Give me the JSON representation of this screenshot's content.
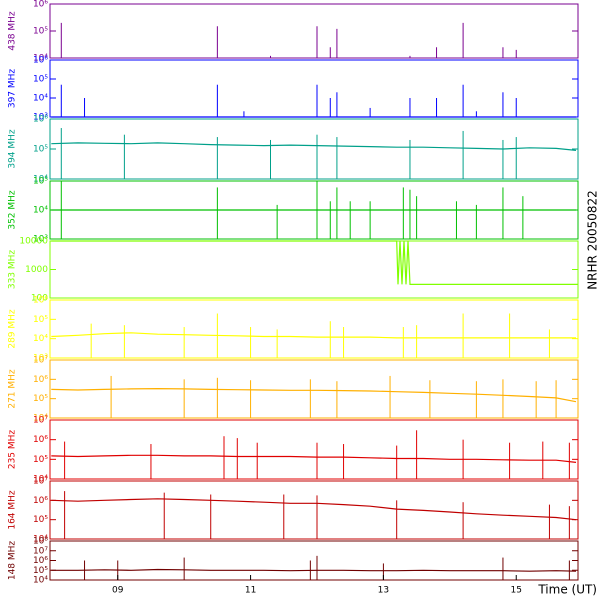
{
  "station_label": "NRHR 20050822",
  "chart_data": [
    {
      "type": "line",
      "label": "438 MHz",
      "color": "#7a0090",
      "log": true,
      "xlim": [
        7.98,
        15.93
      ],
      "ylim": [
        10000,
        1000000
      ],
      "yticks": [
        {
          "value": 10000,
          "label": "10⁴"
        },
        {
          "value": 100000,
          "label": "10⁵"
        },
        {
          "value": 1000000,
          "label": "10⁶"
        }
      ],
      "spike_x": [
        8.15,
        10.5,
        11.3,
        12.0,
        12.2,
        12.3,
        13.4,
        13.8,
        14.2,
        14.8,
        15.0
      ],
      "spike_values": [
        200000,
        150000,
        12000,
        150000,
        25000,
        120000,
        12000,
        25000,
        200000,
        25000,
        20000
      ]
    },
    {
      "type": "line",
      "label": "397 MHz",
      "color": "#0000ff",
      "log": true,
      "xlim": [
        7.98,
        15.93
      ],
      "ylim": [
        1000,
        1000000
      ],
      "yticks": [
        {
          "value": 1000,
          "label": "10³"
        },
        {
          "value": 10000,
          "label": "10⁴"
        },
        {
          "value": 100000,
          "label": "10⁵"
        },
        {
          "value": 1000000,
          "label": "10⁶"
        }
      ],
      "x": [
        8.0,
        15.9
      ],
      "values": [
        1000,
        1000
      ],
      "spike_x": [
        8.15,
        8.5,
        10.5,
        10.9,
        12.0,
        12.2,
        12.3,
        12.8,
        13.4,
        13.8,
        14.2,
        14.4,
        14.8,
        15.0
      ],
      "spike_values": [
        50000,
        10000,
        50000,
        2000,
        50000,
        10000,
        20000,
        3000,
        10000,
        10000,
        50000,
        2000,
        20000,
        10000
      ]
    },
    {
      "type": "line",
      "label": "394 MHz",
      "color": "#00a08a",
      "log": true,
      "xlim": [
        7.98,
        15.93
      ],
      "ylim": [
        10000,
        1000000
      ],
      "yticks": [
        {
          "value": 10000,
          "label": "10⁴"
        },
        {
          "value": 100000,
          "label": "10⁵"
        },
        {
          "value": 1000000,
          "label": "10⁶"
        }
      ],
      "x": [
        8.0,
        8.4,
        8.8,
        9.2,
        9.6,
        10.0,
        10.4,
        10.8,
        11.2,
        11.6,
        12.0,
        12.4,
        12.8,
        13.2,
        13.6,
        14.0,
        14.4,
        14.8,
        15.2,
        15.6,
        15.9
      ],
      "values": [
        150000,
        160000,
        155000,
        150000,
        160000,
        150000,
        140000,
        135000,
        130000,
        135000,
        130000,
        125000,
        120000,
        115000,
        115000,
        110000,
        105000,
        100000,
        110000,
        105000,
        90000
      ],
      "spike_x": [
        8.15,
        9.1,
        10.5,
        11.3,
        12.0,
        12.3,
        13.4,
        14.2,
        14.8,
        15.0
      ],
      "spike_values": [
        500000,
        300000,
        250000,
        200000,
        300000,
        250000,
        200000,
        400000,
        200000,
        250000
      ]
    },
    {
      "type": "line",
      "label": "352 MHz",
      "color": "#00c000",
      "log": true,
      "xlim": [
        7.98,
        15.93
      ],
      "ylim": [
        1000,
        100000
      ],
      "yticks": [
        {
          "value": 1000,
          "label": "10³"
        },
        {
          "value": 10000,
          "label": "10⁴"
        },
        {
          "value": 100000,
          "label": "10⁵"
        }
      ],
      "x": [
        8.0,
        15.9
      ],
      "values": [
        10000,
        10000
      ],
      "spike_x": [
        8.15,
        10.5,
        11.4,
        12.0,
        12.2,
        12.3,
        12.5,
        12.8,
        13.3,
        13.4,
        13.5,
        14.1,
        14.4,
        14.8,
        15.1
      ],
      "spike_values": [
        100000,
        60000,
        15000,
        100000,
        20000,
        60000,
        20000,
        20000,
        60000,
        50000,
        30000,
        20000,
        15000,
        60000,
        30000
      ]
    },
    {
      "type": "line",
      "label": "333 MHz",
      "color": "#80ff00",
      "log": true,
      "xlim": [
        7.98,
        15.93
      ],
      "ylim": [
        100,
        10000
      ],
      "yticks": [
        100,
        1000,
        10000
      ],
      "x": [
        8.0,
        13.2,
        13.22,
        13.25,
        13.28,
        13.31,
        13.34,
        13.37,
        13.4,
        15.93
      ],
      "values": [
        10000,
        10000,
        300,
        10000,
        300,
        10000,
        300,
        10000,
        300,
        300
      ]
    },
    {
      "type": "line",
      "label": "289 MHz",
      "color": "#ffff00",
      "log": true,
      "xlim": [
        7.98,
        15.93
      ],
      "ylim": [
        1000,
        1000000
      ],
      "yticks": [
        {
          "value": 1000,
          "label": "10³"
        },
        {
          "value": 10000,
          "label": "10⁴"
        },
        {
          "value": 100000,
          "label": "10⁵"
        },
        {
          "value": 1000000,
          "label": "10⁶"
        }
      ],
      "x": [
        8.0,
        8.4,
        8.8,
        9.2,
        9.6,
        10.0,
        10.4,
        10.8,
        11.2,
        11.6,
        12.0,
        12.4,
        12.8,
        13.2,
        13.6,
        14.0,
        14.4,
        14.8,
        15.2,
        15.6,
        15.9
      ],
      "values": [
        13000,
        15000,
        18000,
        20000,
        17000,
        16000,
        15000,
        14000,
        13000,
        13000,
        12000,
        12000,
        12000,
        11000,
        11000,
        11000,
        11000,
        11000,
        11000,
        11000,
        11000
      ],
      "spike_x": [
        8.6,
        9.1,
        10.0,
        10.5,
        11.0,
        11.4,
        12.2,
        12.4,
        13.3,
        13.5,
        14.2,
        14.9,
        15.5
      ],
      "spike_values": [
        60000,
        50000,
        40000,
        200000,
        40000,
        30000,
        80000,
        40000,
        40000,
        50000,
        200000,
        200000,
        30000
      ]
    },
    {
      "type": "line",
      "label": "271 MHz",
      "color": "#ffb000",
      "log": true,
      "xlim": [
        7.98,
        15.93
      ],
      "ylim": [
        10000,
        10000000
      ],
      "yticks": [
        {
          "value": 10000,
          "label": "10⁴"
        },
        {
          "value": 100000,
          "label": "10⁵"
        },
        {
          "value": 1000000,
          "label": "10⁶"
        },
        {
          "value": 10000000,
          "label": "10⁷"
        }
      ],
      "x": [
        8.0,
        8.4,
        8.8,
        9.2,
        9.6,
        10.0,
        10.4,
        10.8,
        11.2,
        11.6,
        12.0,
        12.4,
        12.8,
        13.2,
        13.6,
        14.0,
        14.4,
        14.8,
        15.2,
        15.6,
        15.9
      ],
      "values": [
        300000,
        280000,
        300000,
        320000,
        330000,
        320000,
        300000,
        290000,
        280000,
        270000,
        270000,
        260000,
        250000,
        230000,
        210000,
        190000,
        170000,
        150000,
        130000,
        110000,
        70000
      ],
      "spike_x": [
        8.9,
        10.0,
        10.5,
        11.0,
        11.9,
        12.3,
        13.1,
        13.7,
        14.4,
        14.8,
        15.3,
        15.6
      ],
      "spike_values": [
        1500000,
        1000000,
        1200000,
        900000,
        1000000,
        800000,
        1500000,
        900000,
        800000,
        1000000,
        800000,
        900000
      ]
    },
    {
      "type": "line",
      "label": "235 MHz",
      "color": "#e00000",
      "log": true,
      "xlim": [
        7.98,
        15.93
      ],
      "ylim": [
        10000,
        10000000
      ],
      "yticks": [
        {
          "value": 10000,
          "label": "10⁴"
        },
        {
          "value": 100000,
          "label": "10⁵"
        },
        {
          "value": 1000000,
          "label": "10⁶"
        },
        {
          "value": 10000000,
          "label": "10⁷"
        }
      ],
      "x": [
        8.0,
        8.4,
        8.8,
        9.2,
        9.6,
        10.0,
        10.4,
        10.8,
        11.2,
        11.6,
        12.0,
        12.4,
        12.8,
        13.2,
        13.6,
        14.0,
        14.4,
        14.8,
        15.2,
        15.6,
        15.9
      ],
      "values": [
        150000,
        140000,
        150000,
        160000,
        160000,
        150000,
        150000,
        140000,
        140000,
        140000,
        130000,
        130000,
        120000,
        110000,
        110000,
        100000,
        100000,
        95000,
        90000,
        90000,
        70000
      ],
      "spike_x": [
        8.2,
        9.5,
        10.6,
        10.8,
        11.1,
        12.0,
        12.4,
        13.2,
        13.5,
        14.2,
        14.9,
        15.4,
        15.8
      ],
      "spike_values": [
        800000,
        600000,
        1500000,
        1200000,
        700000,
        700000,
        600000,
        500000,
        3000000,
        1000000,
        700000,
        800000,
        700000
      ]
    },
    {
      "type": "line",
      "label": "164 MHz",
      "color": "#c00000",
      "log": true,
      "xlim": [
        7.98,
        15.93
      ],
      "ylim": [
        10000,
        10000000
      ],
      "yticks": [
        {
          "value": 10000,
          "label": "10⁴"
        },
        {
          "value": 100000,
          "label": "10⁵"
        },
        {
          "value": 1000000,
          "label": "10⁶"
        },
        {
          "value": 10000000,
          "label": "10⁷"
        }
      ],
      "x": [
        8.0,
        8.4,
        8.8,
        9.2,
        9.6,
        10.0,
        10.4,
        10.8,
        11.2,
        11.6,
        12.0,
        12.4,
        12.8,
        13.2,
        13.6,
        14.0,
        14.4,
        14.8,
        15.2,
        15.6,
        15.9
      ],
      "values": [
        1000000,
        900000,
        1000000,
        1100000,
        1200000,
        1100000,
        1000000,
        900000,
        800000,
        700000,
        700000,
        600000,
        500000,
        350000,
        300000,
        250000,
        200000,
        170000,
        150000,
        130000,
        100000
      ],
      "spike_x": [
        8.2,
        9.7,
        10.4,
        11.5,
        12.0,
        13.2,
        14.2,
        15.5,
        15.8
      ],
      "spike_values": [
        3000000,
        2500000,
        2000000,
        2000000,
        1800000,
        1000000,
        800000,
        600000,
        500000
      ]
    },
    {
      "type": "line",
      "label": "148 MHz",
      "color": "#700000",
      "log": true,
      "xlim": [
        7.98,
        15.93
      ],
      "ylim": [
        10000,
        100000000
      ],
      "yticks": [
        {
          "value": 10000,
          "label": "10⁴"
        },
        {
          "value": 100000,
          "label": "10⁵"
        },
        {
          "value": 1000000,
          "label": "10⁶"
        },
        {
          "value": 10000000,
          "label": "10⁷"
        },
        {
          "value": 100000000,
          "label": "10⁸"
        }
      ],
      "x": [
        8.0,
        8.4,
        8.8,
        9.2,
        9.6,
        10.0,
        10.4,
        10.8,
        11.2,
        11.6,
        12.0,
        12.4,
        12.8,
        13.2,
        13.6,
        14.0,
        14.4,
        14.8,
        15.2,
        15.6,
        15.9
      ],
      "values": [
        100000,
        100000,
        110000,
        100000,
        120000,
        110000,
        100000,
        100000,
        100000,
        90000,
        100000,
        100000,
        90000,
        90000,
        100000,
        90000,
        90000,
        90000,
        80000,
        90000,
        80000
      ],
      "spike_x": [
        8.5,
        9.0,
        10.0,
        11.9,
        12.0,
        13.0,
        14.8,
        15.8
      ],
      "spike_values": [
        1000000,
        1000000,
        2000000,
        1000000,
        3000000,
        500000,
        2000000,
        1000000
      ],
      "xticks": [
        {
          "value": 9,
          "label": "09"
        },
        {
          "value": 11,
          "label": "11"
        },
        {
          "value": 13,
          "label": "13"
        },
        {
          "value": 15,
          "label": "15"
        }
      ],
      "xlabel": "Time (UT)"
    }
  ]
}
